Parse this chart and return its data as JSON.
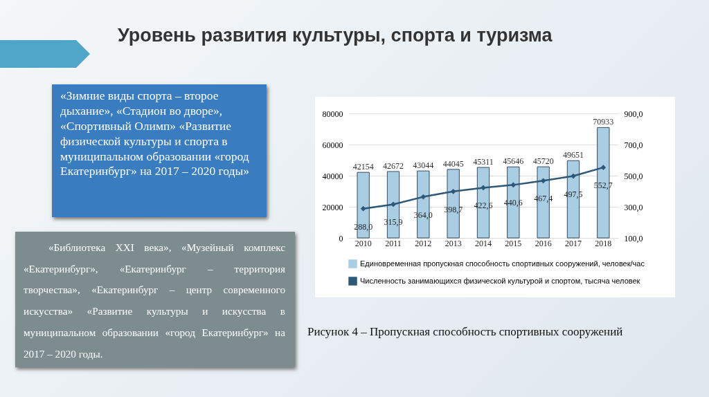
{
  "chart_data": {
    "type": "bar",
    "title": "Уровень развития культуры, спорта и туризма",
    "categories": [
      "2010",
      "2011",
      "2012",
      "2013",
      "2014",
      "2015",
      "2016",
      "2017",
      "2018"
    ],
    "series": [
      {
        "name": "Единовременная пропускная способность спортивных сооружений, человек/час",
        "color": "#a9cde3",
        "values": [
          42154,
          42672,
          43044,
          44045,
          45311,
          45646,
          45720,
          49651,
          70933
        ],
        "value_labels": [
          "42154",
          "42672",
          "43044",
          "44045",
          "45311",
          "45646",
          "45720",
          "49651",
          "70933"
        ]
      },
      {
        "name": "Численность занимающихся физической культурой и спортом, тысяча человек",
        "type": "line",
        "axis": "y2",
        "color": "#2e5878",
        "values": [
          288.0,
          315.9,
          364.0,
          398.7,
          422.6,
          440.6,
          467.4,
          497.5,
          552.7
        ],
        "value_labels": [
          "288,0",
          "315,9",
          "364,0",
          "398,7",
          "422,6",
          "440,6",
          "467,4",
          "497,5",
          "552,7"
        ]
      }
    ],
    "ylim": [
      0,
      80000
    ],
    "yticks": [
      0,
      20000,
      40000,
      60000,
      80000
    ],
    "y2lim": [
      100,
      900
    ],
    "y2ticks": [
      {
        "value": 100,
        "label": "100,0"
      },
      {
        "value": 300,
        "label": "300,0"
      },
      {
        "value": 500,
        "label": "500,0"
      },
      {
        "value": 700,
        "label": "700,0"
      },
      {
        "value": 900,
        "label": "900,0"
      }
    ],
    "grid": "y",
    "legend": "bottom",
    "marker": "diamond",
    "annotations": [
      "«Зимние виды спорта – второе дыхание», «Стадион во дворе», «Спортивный Олимп» «Развитие физической культуры и спорта в муниципальном образовании «город Екатеринбург» на 2017 – 2020 годы»",
      "«Библиотека XXI века», «Музейный комплекс «Екатеринбург», «Екатеринбург – территория творчества», «Екатеринбург – центр современного искусства» «Развитие культуры и искусства в муниципальном образовании «город Екатеринбург» на 2017 – 2020 годы.",
      "Рисунок 4 – Пропускная способность спортивных сооружений"
    ]
  }
}
